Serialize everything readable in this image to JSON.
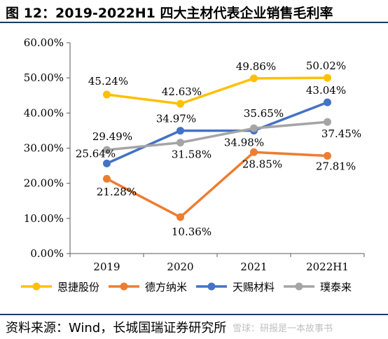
{
  "header": {
    "title": "图 12：2019-2022H1 四大主材代表企业销售毛利率"
  },
  "footer": {
    "source": "资料来源：Wind，长城国瑞证券研究所",
    "watermark": "雪球：研报是一本故事书"
  },
  "chart_data": {
    "type": "line",
    "title": "",
    "xlabel": "",
    "ylabel": "",
    "categories": [
      "2019",
      "2020",
      "2021",
      "2022H1"
    ],
    "ylim": [
      0,
      60
    ],
    "yticks": [
      "0.00%",
      "10.00%",
      "20.00%",
      "30.00%",
      "40.00%",
      "50.00%",
      "60.00%"
    ],
    "legend_position": "bottom",
    "grid": false,
    "series": [
      {
        "name": "恩捷股份",
        "color": "#ffc000",
        "values": [
          45.24,
          42.63,
          49.86,
          50.02
        ],
        "labels": [
          "45.24%",
          "42.63%",
          "49.86%",
          "50.02%"
        ]
      },
      {
        "name": "德方纳米",
        "color": "#ed7d31",
        "values": [
          21.28,
          10.36,
          28.85,
          27.81
        ],
        "labels": [
          "21.28%",
          "10.36%",
          "28.85%",
          "27.81%"
        ]
      },
      {
        "name": "天赐材料",
        "color": "#4472c4",
        "values": [
          25.64,
          34.97,
          34.98,
          43.04
        ],
        "labels": [
          "25.64%",
          "34.97%",
          "34.98%",
          "43.04%"
        ]
      },
      {
        "name": "璞泰来",
        "color": "#a5a5a5",
        "values": [
          29.49,
          31.58,
          35.65,
          37.45
        ],
        "labels": [
          "29.49%",
          "31.58%",
          "35.65%",
          "37.45%"
        ]
      }
    ]
  }
}
